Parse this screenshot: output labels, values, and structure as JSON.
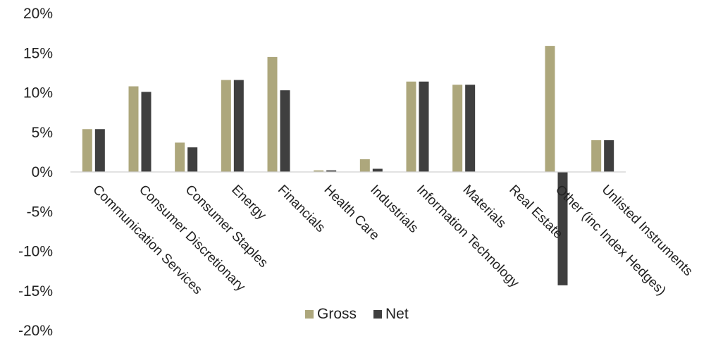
{
  "chart_data": {
    "type": "bar",
    "title": "",
    "xlabel": "",
    "ylabel": "",
    "ylim": [
      -0.2,
      0.2
    ],
    "y_ticks": [
      "20%",
      "15%",
      "10%",
      "5%",
      "0%",
      "-5%",
      "-10%",
      "-15%",
      "-20%"
    ],
    "grid": false,
    "legend_position": "bottom-center",
    "categories": [
      "Communication Services",
      "Consumer Discretionary",
      "Consumer Staples",
      "Energy",
      "Financials",
      "Health Care",
      "Industrials",
      "Information Technology",
      "Materials",
      "Real Estate",
      "Other (inc Index Hedges)",
      "Unlisted Instruments"
    ],
    "series": [
      {
        "name": "Gross",
        "color": "#ADA77C",
        "values": [
          0.054,
          0.108,
          0.037,
          0.116,
          0.145,
          0.002,
          0.016,
          0.114,
          0.11,
          0.0,
          0.159,
          0.04
        ]
      },
      {
        "name": "Net",
        "color": "#3F3F3F",
        "values": [
          0.054,
          0.101,
          0.031,
          0.116,
          0.103,
          0.002,
          0.004,
          0.114,
          0.11,
          0.0,
          -0.143,
          0.04
        ]
      }
    ]
  }
}
